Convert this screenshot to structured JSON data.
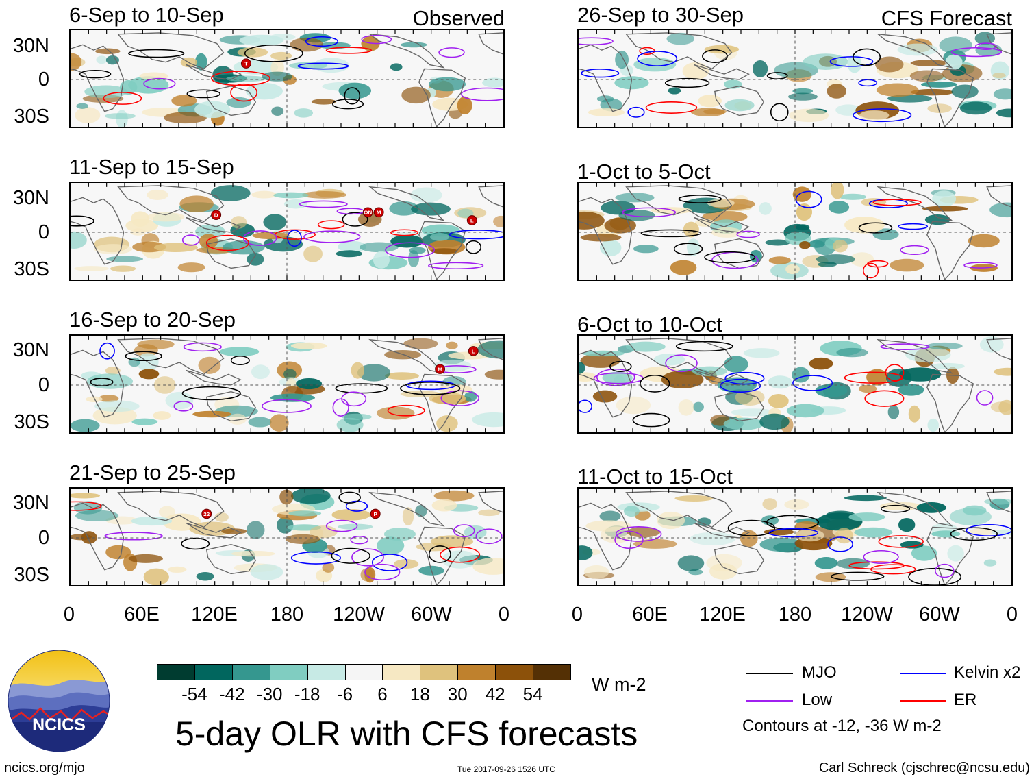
{
  "observed": {
    "corner_label": "Observed",
    "panels": [
      {
        "title": "6-Sep to 10-Sep"
      },
      {
        "title": "11-Sep to 15-Sep"
      },
      {
        "title": "16-Sep to 20-Sep"
      },
      {
        "title": "21-Sep to 25-Sep"
      }
    ]
  },
  "forecast": {
    "corner_label": "CFS Forecast",
    "panels": [
      {
        "title": "26-Sep to 30-Sep"
      },
      {
        "title": "1-Oct to 5-Oct"
      },
      {
        "title": "6-Oct to 10-Oct"
      },
      {
        "title": "11-Oct to 15-Oct"
      }
    ]
  },
  "lat_labels": [
    "30N",
    "0",
    "30S"
  ],
  "lon_labels": [
    "0",
    "60E",
    "120E",
    "180",
    "120W",
    "60W",
    "0"
  ],
  "storm_markers": [
    {
      "panel": "obs1",
      "label": "T"
    },
    {
      "panel": "obs2",
      "label": "D"
    },
    {
      "panel": "obs2",
      "label": "ON"
    },
    {
      "panel": "obs2",
      "label": "M"
    },
    {
      "panel": "obs2",
      "label": "L"
    },
    {
      "panel": "obs3",
      "label": "M"
    },
    {
      "panel": "obs3",
      "label": "L"
    },
    {
      "panel": "obs4",
      "label": "22"
    },
    {
      "panel": "obs4",
      "label": "P"
    }
  ],
  "colorbar": {
    "unit": "W m-2",
    "colors": [
      "#003c30",
      "#01665e",
      "#35978f",
      "#80cdc1",
      "#c7eae5",
      "#f5f5f5",
      "#f6e8c3",
      "#dfc27d",
      "#bf812d",
      "#8c510a",
      "#543005"
    ],
    "labels": [
      "-54",
      "-42",
      "-30",
      "-18",
      "-6",
      "6",
      "18",
      "30",
      "42",
      "54"
    ]
  },
  "main_title": "5-day OLR with CFS forecasts",
  "logo_text": "NCICS",
  "legend": {
    "items": [
      {
        "label": "MJO",
        "color": "#000000"
      },
      {
        "label": "Kelvin x2",
        "color": "#0000ff"
      },
      {
        "label": "Low",
        "color": "#a020f0"
      },
      {
        "label": "ER",
        "color": "#ff0000"
      }
    ],
    "note": "Contours at -12, -36 W m-2"
  },
  "footer": {
    "left": "ncics.org/mjo",
    "center": "Tue 2017-09-26 1526 UTC",
    "right": "Carl Schreck (cjschrec@ncsu.edu)"
  }
}
